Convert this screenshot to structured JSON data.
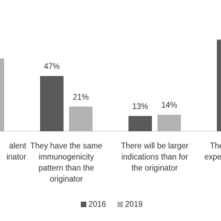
{
  "chart_data": {
    "type": "bar",
    "categories": [
      [
        "alent",
        "inator"
      ],
      [
        "They have the same",
        "immunogenicity",
        "pattern than the",
        "originator"
      ],
      [
        "There will be larger",
        "indications than for",
        "the originator"
      ],
      [
        "The",
        "expe"
      ]
    ],
    "series": [
      {
        "name": "2016",
        "color": "#5a5a5a",
        "values": [
          null,
          47,
          13,
          78
        ],
        "value_labels": [
          null,
          "47%",
          "13%",
          null
        ]
      },
      {
        "name": "2019",
        "color": "#b3b3b3",
        "values": [
          62,
          21,
          14,
          null
        ],
        "value_labels": [
          null,
          "21%",
          "14%",
          null
        ]
      }
    ],
    "ylim": [
      0,
      100
    ]
  }
}
